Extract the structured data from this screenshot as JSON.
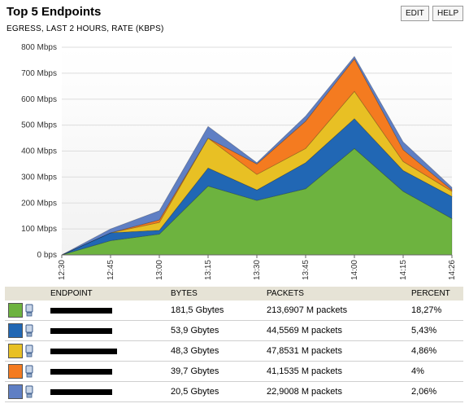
{
  "header": {
    "title": "Top 5 Endpoints",
    "subtitle": "EGRESS, LAST 2 HOURS, RATE (KBPS)",
    "edit_label": "EDIT",
    "help_label": "HELP"
  },
  "chart_data": {
    "type": "area",
    "stacked": true,
    "x": [
      "12:30",
      "12:45",
      "13:00",
      "13:15",
      "13:30",
      "13:45",
      "14:00",
      "14:15",
      "14:26"
    ],
    "y_ticks": [
      "0 bps",
      "100 Mbps",
      "200 Mbps",
      "300 Mbps",
      "400 Mbps",
      "500 Mbps",
      "600 Mbps",
      "700 Mbps",
      "800 Mbps"
    ],
    "ylim": [
      0,
      800
    ],
    "grid": true,
    "series": [
      {
        "color": "#6db33f",
        "values": [
          0,
          55,
          80,
          265,
          210,
          255,
          410,
          245,
          140
        ]
      },
      {
        "color": "#2167b4",
        "values": [
          0,
          30,
          15,
          70,
          40,
          100,
          115,
          80,
          85
        ]
      },
      {
        "color": "#e8c024",
        "values": [
          0,
          0,
          30,
          115,
          60,
          55,
          105,
          35,
          20
        ]
      },
      {
        "color": "#f47b20",
        "values": [
          0,
          0,
          10,
          0,
          40,
          105,
          125,
          45,
          5
        ]
      },
      {
        "color": "#5f7fc4",
        "values": [
          0,
          15,
          35,
          45,
          5,
          20,
          10,
          30,
          10
        ]
      }
    ]
  },
  "table": {
    "headers": [
      "ENDPOINT",
      "BYTES",
      "PACKETS",
      "PERCENT"
    ],
    "rows": [
      {
        "color": "#6db33f",
        "bytes": "181,5 Gbytes",
        "packets": "213,6907 M packets",
        "percent": "18,27%"
      },
      {
        "color": "#2167b4",
        "bytes": "53,9 Gbytes",
        "packets": "44,5569 M packets",
        "percent": "5,43%"
      },
      {
        "color": "#e8c024",
        "bytes": "48,3 Gbytes",
        "packets": "47,8531 M packets",
        "percent": "4,86%"
      },
      {
        "color": "#f47b20",
        "bytes": "39,7 Gbytes",
        "packets": "41,1535 M packets",
        "percent": "4%"
      },
      {
        "color": "#5f7fc4",
        "bytes": "20,5 Gbytes",
        "packets": "22,9008 M packets",
        "percent": "2,06%"
      }
    ]
  }
}
